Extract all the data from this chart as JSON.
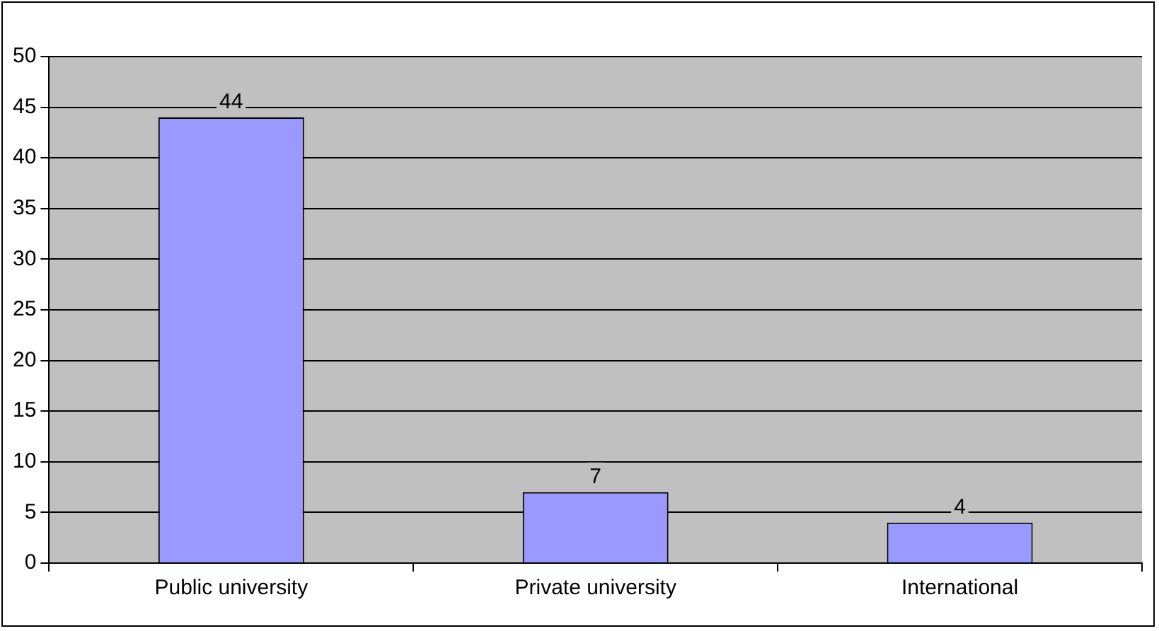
{
  "chart_data": {
    "type": "bar",
    "categories": [
      "Public university",
      "Private university",
      "International"
    ],
    "values": [
      44,
      7,
      4
    ],
    "color": "#9999ff",
    "ylim": [
      0,
      50
    ],
    "yticks": [
      0,
      5,
      10,
      15,
      20,
      25,
      30,
      35,
      40,
      45,
      50
    ],
    "grid": "y",
    "legend": false,
    "data_labels": true
  }
}
